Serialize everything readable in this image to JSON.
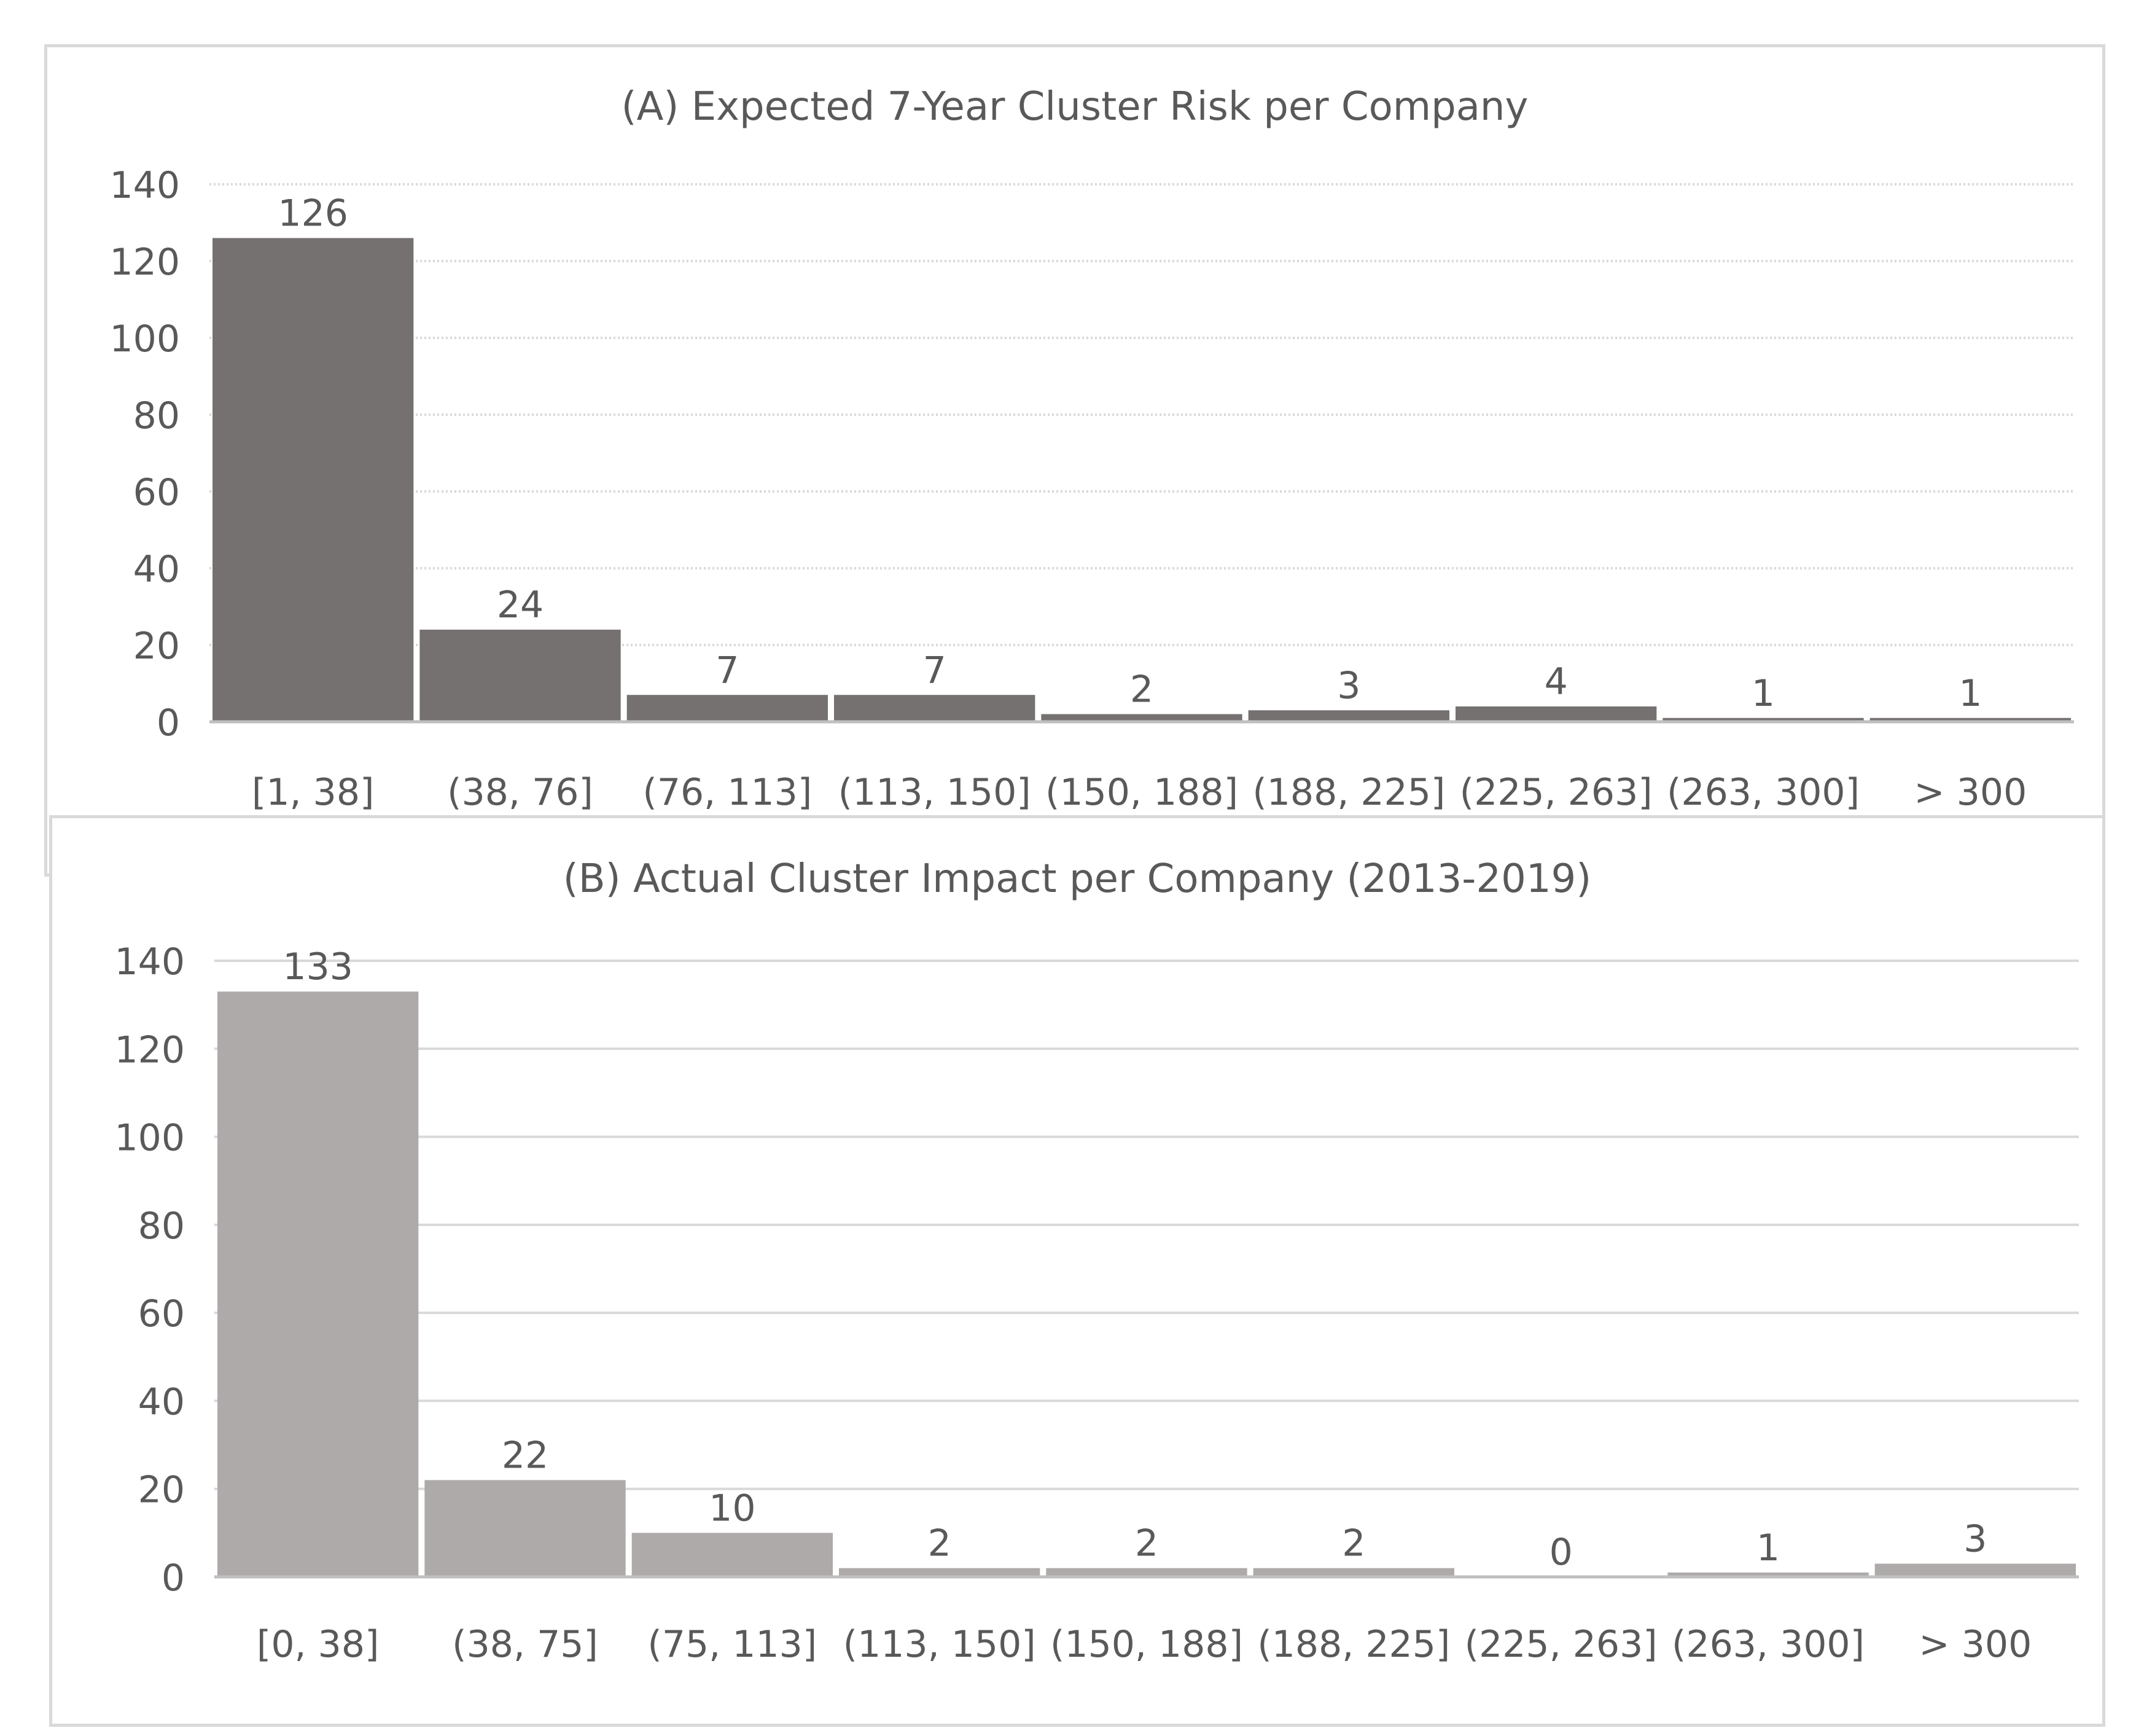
{
  "chart_data": [
    {
      "type": "bar",
      "title": "(A) Expected 7-Year Cluster Risk per Company",
      "categories": [
        "[1, 38]",
        "(38, 76]",
        "(76, 113]",
        "(113, 150]",
        "(150, 188]",
        "(188, 225]",
        "(225, 263]",
        "(263, 300]",
        "> 300"
      ],
      "values": [
        126,
        24,
        7,
        7,
        2,
        3,
        4,
        1,
        1
      ],
      "ylim": [
        0,
        140
      ],
      "yticks": [
        "0",
        "20",
        "40",
        "60",
        "80",
        "100",
        "120",
        "140"
      ],
      "grid": true,
      "grid_style": "dotted",
      "bar_color": "#767171",
      "legend": "none"
    },
    {
      "type": "bar",
      "title": "(B) Actual Cluster Impact per Company (2013-2019)",
      "categories": [
        "[0, 38]",
        "(38, 75]",
        "(75, 113]",
        "(113, 150]",
        "(150, 188]",
        "(188, 225]",
        "(225, 263]",
        "(263, 300]",
        "> 300"
      ],
      "values": [
        133,
        22,
        10,
        2,
        2,
        2,
        0,
        1,
        3
      ],
      "ylim": [
        0,
        140
      ],
      "yticks": [
        "0",
        "20",
        "40",
        "60",
        "80",
        "100",
        "120",
        "140"
      ],
      "grid": true,
      "grid_style": "solid",
      "bar_color": "#AEAAAA",
      "legend": "none"
    }
  ],
  "colors": {
    "text": "#595959",
    "grid": "#d9d9d9",
    "axis": "#bfbfbf",
    "panel_border": "#d9d9d9"
  }
}
